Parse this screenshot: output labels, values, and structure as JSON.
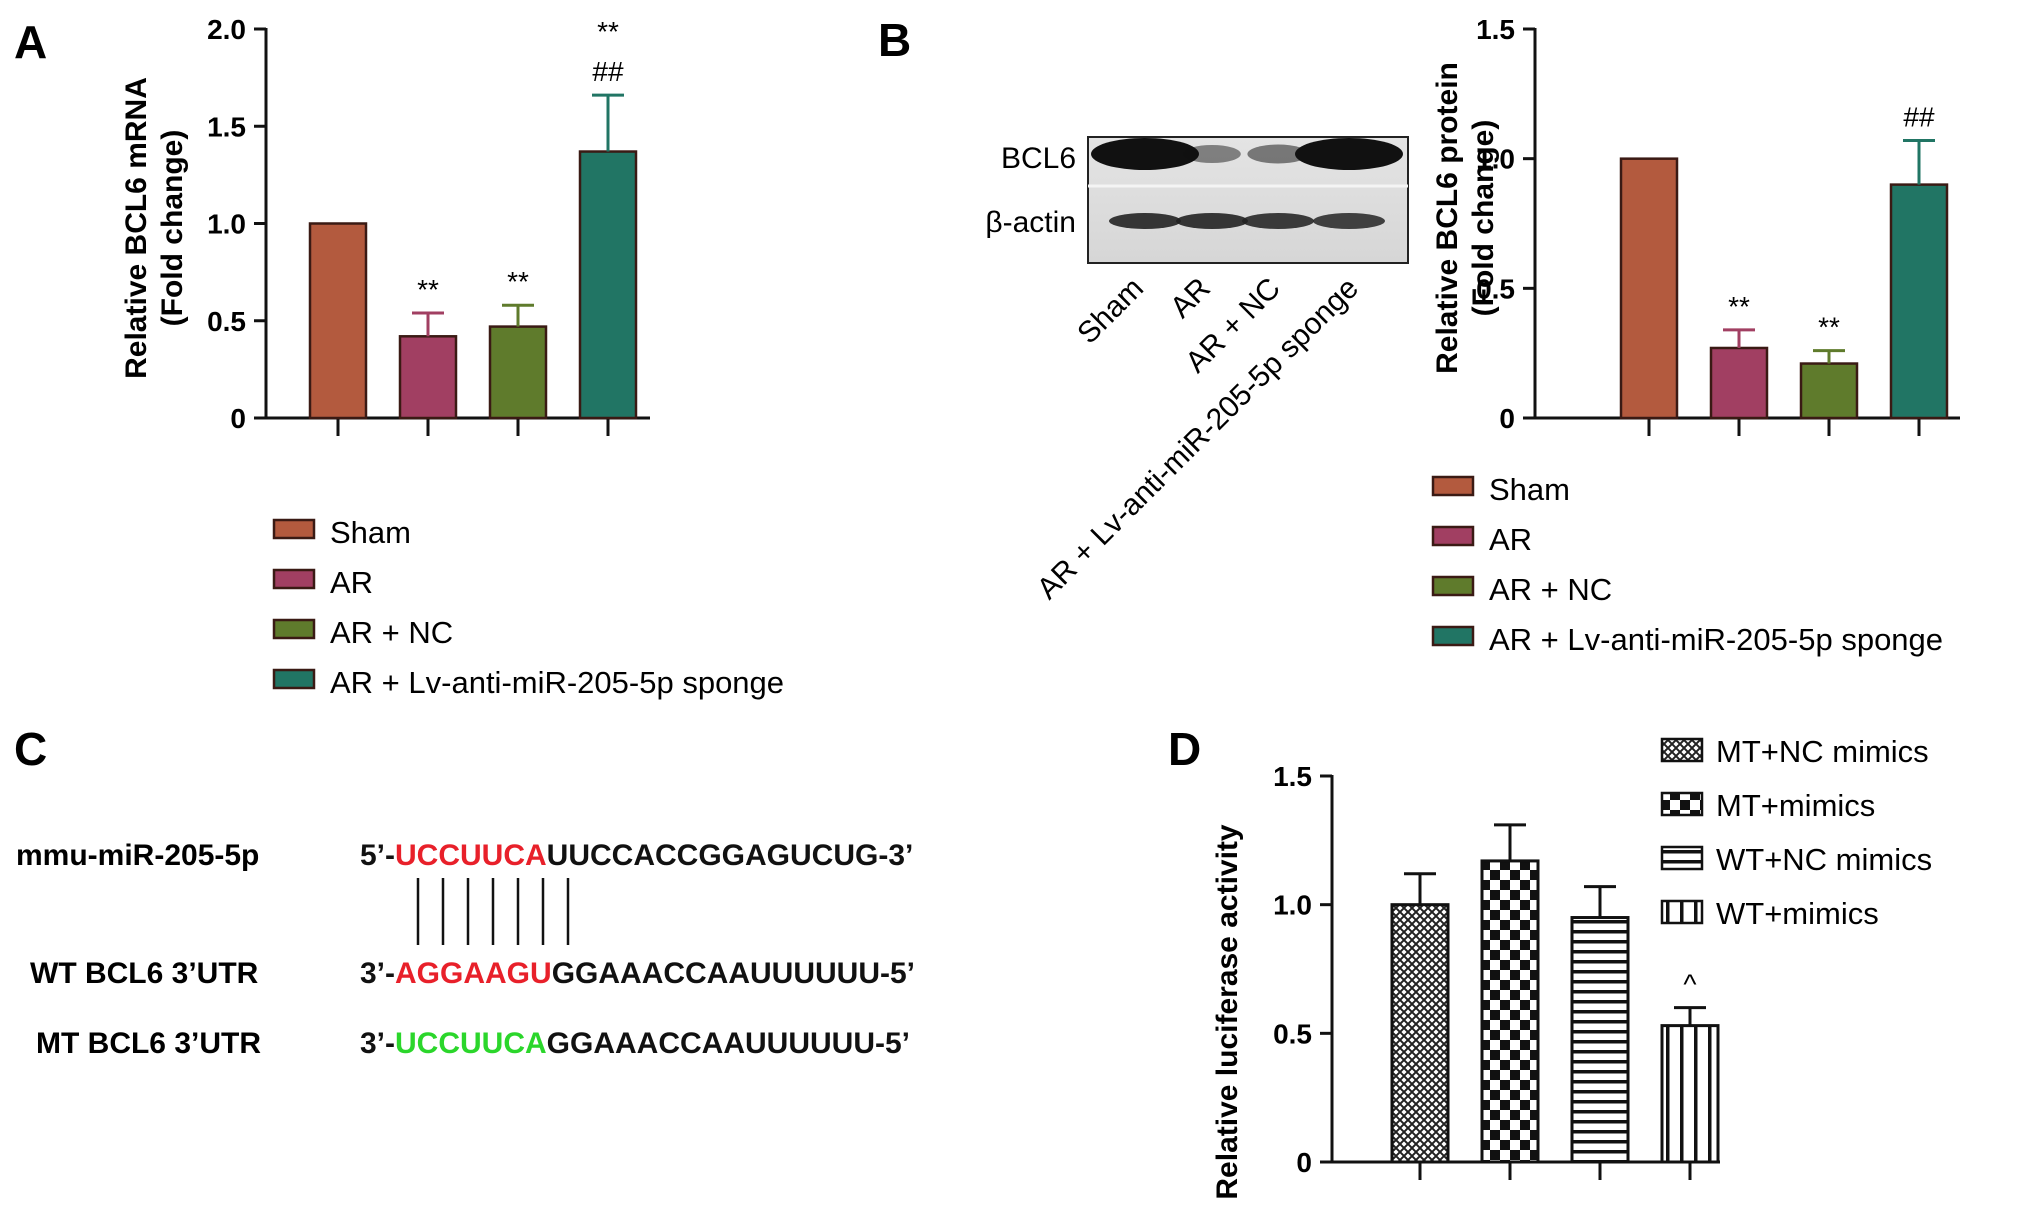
{
  "panels": {
    "A": "A",
    "B": "B",
    "C": "C",
    "D": "D"
  },
  "colors": {
    "sham": "#b35a3e",
    "ar": "#a13f62",
    "ar_nc": "#5f7b2c",
    "lv": "#217564",
    "red_seq": "#e8202a",
    "green_seq": "#2bd62b"
  },
  "chart_data": [
    {
      "id": "A",
      "type": "bar",
      "categories": [
        "Sham",
        "AR",
        "AR + NC",
        "AR + Lv-anti-miR-205-5p sponge"
      ],
      "values": [
        1.0,
        0.42,
        0.47,
        1.37
      ],
      "errors": [
        0,
        0.12,
        0.11,
        0.29
      ],
      "annotations": [
        "",
        "**",
        "**",
        "**\n##"
      ],
      "ylabel": [
        "Relative BCL6 mRNA",
        "(Fold change)"
      ],
      "ylim": [
        0,
        2.0
      ],
      "yticks": [
        "0",
        "0.5",
        "1.0",
        "1.5",
        "2.0"
      ],
      "legend": [
        "Sham",
        "AR",
        "AR + NC",
        "AR + Lv-anti-miR-205-5p sponge"
      ],
      "legend_position": "below"
    },
    {
      "id": "B",
      "type": "bar",
      "categories": [
        "Sham",
        "AR",
        "AR + NC",
        "AR + Lv-anti-miR-205-5p sponge"
      ],
      "values": [
        1.0,
        0.27,
        0.21,
        0.9
      ],
      "errors": [
        0,
        0.07,
        0.05,
        0.17
      ],
      "annotations": [
        "",
        "**",
        "**",
        "##"
      ],
      "ylabel": [
        "Relative BCL6 protein",
        "(Fold change)"
      ],
      "ylim": [
        0,
        1.5
      ],
      "yticks": [
        "0",
        "0.5",
        "1.0",
        "1.5"
      ],
      "legend": [
        "Sham",
        "AR",
        "AR + NC",
        "AR + Lv-anti-miR-205-5p sponge"
      ],
      "legend_position": "below"
    },
    {
      "id": "D",
      "type": "bar",
      "categories": [
        "MT+NC mimics",
        "MT+mimics",
        "WT+NC mimics",
        "WT+mimics"
      ],
      "values": [
        1.0,
        1.17,
        0.95,
        0.53
      ],
      "errors": [
        0.12,
        0.14,
        0.12,
        0.07
      ],
      "annotations": [
        "",
        "",
        "",
        "^"
      ],
      "patterns": [
        "crosshatch",
        "checker",
        "horizontal",
        "vertical"
      ],
      "ylabel": [
        "Relative luciferase activity"
      ],
      "ylim": [
        0,
        1.5
      ],
      "yticks": [
        "0",
        "0.5",
        "1.0",
        "1.5"
      ],
      "legend": [
        "MT+NC mimics",
        "MT+mimics",
        "WT+NC mimics",
        "WT+mimics"
      ],
      "legend_position": "top-right"
    }
  ],
  "blot": {
    "bands": [
      "BCL6",
      "β-actin"
    ],
    "lanes": [
      "Sham",
      "AR",
      "AR + NC",
      "AR + Lv-anti-miR-205-5p sponge"
    ],
    "bcl6_intensity": [
      1.0,
      0.3,
      0.35,
      1.0
    ],
    "actin_intensity": [
      0.9,
      0.9,
      0.85,
      0.8
    ]
  },
  "sequences": {
    "rows": [
      {
        "name": "mmu-miR-205-5p",
        "prefix": "5’-",
        "seed": "UCCUUCA",
        "seed_color": "red",
        "rest": "UUCCACCGGAGUCUG-3’"
      },
      {
        "name": "WT BCL6 3’UTR",
        "prefix": "3’-",
        "seed": "AGGAAGU",
        "seed_color": "red",
        "rest": "GGAAACCAAUUUUUU-5’"
      },
      {
        "name": "MT BCL6 3’UTR",
        "prefix": "3’-",
        "seed": "UCCUUCA",
        "seed_color": "green",
        "rest": "GGAAACCAAUUUUUU-5’"
      }
    ],
    "pair_lines": 7
  }
}
